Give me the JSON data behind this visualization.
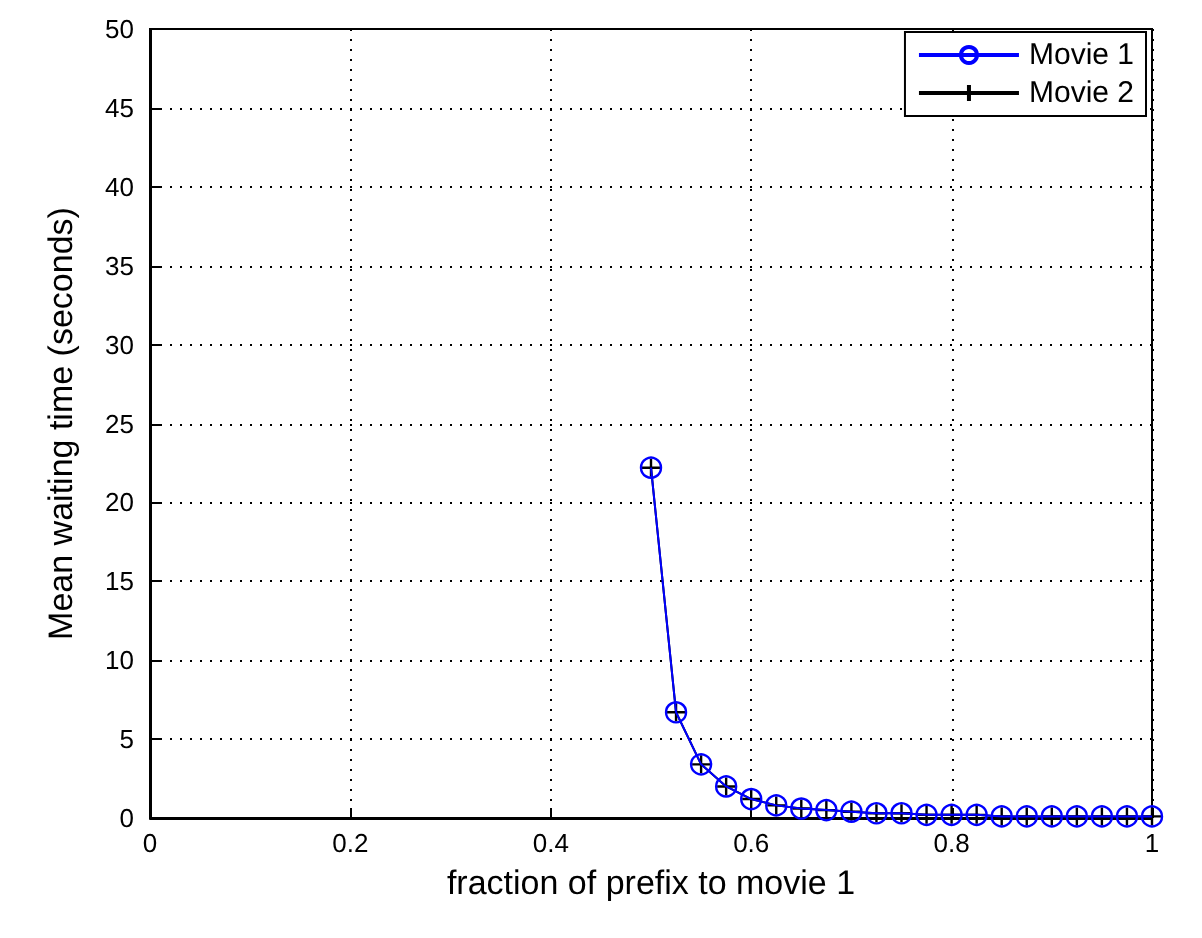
{
  "chart_data": {
    "type": "line",
    "xlabel": "fraction of prefix to movie 1",
    "ylabel": "Mean waiting time (seconds)",
    "x": [
      0.5,
      0.525,
      0.55,
      0.575,
      0.6,
      0.625,
      0.65,
      0.675,
      0.7,
      0.725,
      0.75,
      0.775,
      0.8,
      0.825,
      0.85,
      0.875,
      0.9,
      0.925,
      0.95,
      0.975,
      1.0
    ],
    "series": [
      {
        "name": "Movie 1",
        "color": "#0000ff",
        "marker": "circle",
        "values": [
          22.2,
          6.7,
          3.4,
          2.0,
          1.2,
          0.8,
          0.6,
          0.5,
          0.4,
          0.3,
          0.3,
          0.2,
          0.2,
          0.2,
          0.1,
          0.1,
          0.1,
          0.1,
          0.1,
          0.1,
          0.1
        ]
      },
      {
        "name": "Movie 2",
        "color": "#000000",
        "marker": "cross",
        "values": [
          22.2,
          6.7,
          3.4,
          2.0,
          1.2,
          0.8,
          0.6,
          0.5,
          0.4,
          0.3,
          0.3,
          0.2,
          0.2,
          0.2,
          0.1,
          0.1,
          0.1,
          0.1,
          0.1,
          0.1,
          0.1
        ]
      }
    ],
    "xlim": [
      0,
      1
    ],
    "xticks": [
      0,
      0.2,
      0.4,
      0.6,
      0.8,
      1
    ],
    "ylim": [
      0,
      50
    ],
    "yticks": [
      0,
      5,
      10,
      15,
      20,
      25,
      30,
      35,
      40,
      45,
      50
    ],
    "grid": true,
    "legend": "top right",
    "line_style": "solid"
  }
}
